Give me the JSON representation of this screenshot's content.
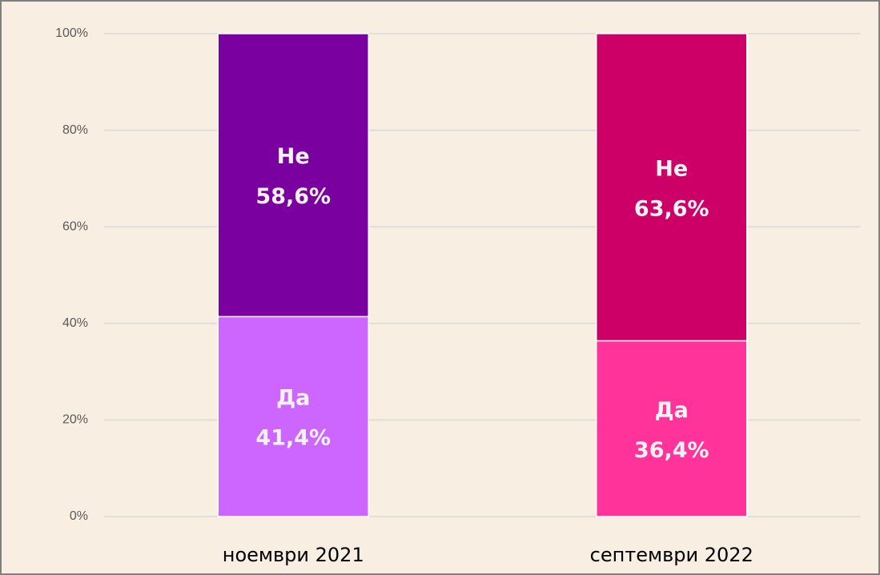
{
  "chart_data": {
    "type": "stacked_bar",
    "categories": [
      "ноември 2021",
      "септември 2022"
    ],
    "series": [
      {
        "name": "Да",
        "colors": [
          "#cc66ff",
          "#ff3399"
        ],
        "values": [
          41.4,
          36.4
        ],
        "value_labels": [
          "41,4%",
          "36,4%"
        ]
      },
      {
        "name": "Не",
        "colors": [
          "#7a00a0",
          "#cc0066"
        ],
        "values": [
          58.6,
          63.6
        ],
        "value_labels": [
          "58,6%",
          "63,6%"
        ]
      }
    ],
    "ylim": [
      0,
      100
    ],
    "yticks": [
      {
        "value": 0,
        "label": "0%"
      },
      {
        "value": 20,
        "label": "20%"
      },
      {
        "value": 40,
        "label": "40%"
      },
      {
        "value": 60,
        "label": "60%"
      },
      {
        "value": 80,
        "label": "80%"
      },
      {
        "value": 100,
        "label": "100%"
      }
    ],
    "grid": true
  }
}
